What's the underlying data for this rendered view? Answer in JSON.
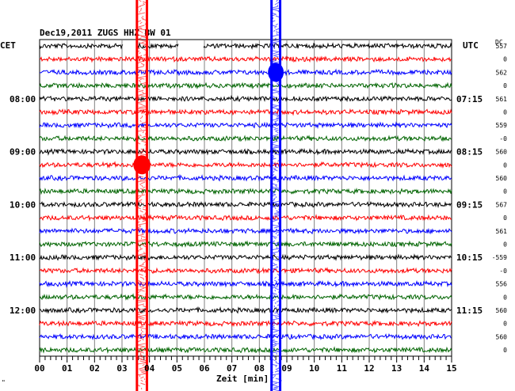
{
  "header": {
    "title": "Dec19,2011  ZUGS HHZ BW 01",
    "left_tz": "CET",
    "right_tz": "UTC",
    "dc_label": "DC"
  },
  "xaxis": {
    "label": "Zeit [min]",
    "ticks": [
      "00",
      "01",
      "02",
      "03",
      "04",
      "05",
      "06",
      "07",
      "08",
      "09",
      "10",
      "11",
      "12",
      "13",
      "14",
      "15"
    ]
  },
  "corner_mark": "\"",
  "chart_data": {
    "type": "line",
    "title": "Dec19,2011  ZUGS HHZ BW 01",
    "xlabel": "Zeit [min]",
    "ylabel": "",
    "xlim": [
      0,
      15
    ],
    "trace_count": 24,
    "trace_interval_min": 15,
    "trace_color_cycle": [
      "#000000",
      "#ff0000",
      "#0000ff",
      "#006400"
    ],
    "left_time_labels": [
      {
        "trace": 4,
        "label": "08:00"
      },
      {
        "trace": 8,
        "label": "09:00"
      },
      {
        "trace": 12,
        "label": "10:00"
      },
      {
        "trace": 16,
        "label": "11:00"
      },
      {
        "trace": 20,
        "label": "12:00"
      }
    ],
    "right_time_labels": [
      {
        "trace": 4,
        "label": "07:15"
      },
      {
        "trace": 8,
        "label": "08:15"
      },
      {
        "trace": 12,
        "label": "09:15"
      },
      {
        "trace": 16,
        "label": "10:15"
      },
      {
        "trace": 20,
        "label": "11:15"
      }
    ],
    "dc_values": [
      "557",
      "0",
      "562",
      "0",
      "561",
      "0",
      "559",
      "-0",
      "560",
      "0",
      "560",
      "0",
      "567",
      "0",
      "561",
      "0",
      "-559",
      "-0",
      "556",
      "0",
      "560",
      "0",
      "560",
      "0"
    ],
    "data_gaps": [
      {
        "trace": 0,
        "x_start": 3.05,
        "x_end": 3.55
      },
      {
        "trace": 0,
        "x_start": 5.05,
        "x_end": 5.95
      }
    ],
    "events": [
      {
        "color": "#ff0000",
        "x_start": 3.5,
        "x_end": 3.95,
        "peak_trace": 9,
        "description": "red vertical bursts"
      },
      {
        "color": "#0000ff",
        "x_start": 8.4,
        "x_end": 8.8,
        "peak_trace": 2,
        "description": "blue vertical bursts"
      }
    ]
  }
}
